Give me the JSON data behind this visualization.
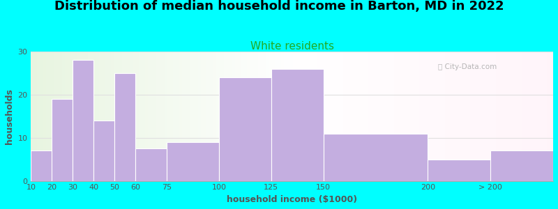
{
  "title": "Distribution of median household income in Barton, MD in 2022",
  "subtitle": "White residents",
  "xlabel": "household income ($1000)",
  "ylabel": "households",
  "background_color": "#00FFFF",
  "bar_color": "#c4aee0",
  "bar_edgecolor": "#ffffff",
  "bin_edges": [
    10,
    20,
    30,
    40,
    50,
    60,
    75,
    100,
    125,
    150,
    200,
    230,
    260
  ],
  "values": [
    7,
    19,
    28,
    14,
    25,
    7.5,
    9,
    24,
    26,
    11,
    5,
    7
  ],
  "xtick_positions": [
    10,
    20,
    30,
    40,
    50,
    60,
    75,
    100,
    125,
    150,
    200,
    230
  ],
  "xtick_labels": [
    "10",
    "20",
    "30",
    "40",
    "50",
    "60",
    "75",
    "100",
    "125",
    "150",
    "200",
    "> 200"
  ],
  "ylim": [
    0,
    30
  ],
  "xlim": [
    10,
    260
  ],
  "yticks": [
    0,
    10,
    20,
    30
  ],
  "title_fontsize": 13,
  "subtitle_fontsize": 11,
  "subtitle_color": "#22aa22",
  "axis_label_fontsize": 9,
  "tick_fontsize": 8,
  "watermark_text": "ⓘ City-Data.com",
  "grid_color": "#e0e0e0",
  "bg_left_color": "#e8f5e0",
  "bg_right_color": "#f8f4fc"
}
